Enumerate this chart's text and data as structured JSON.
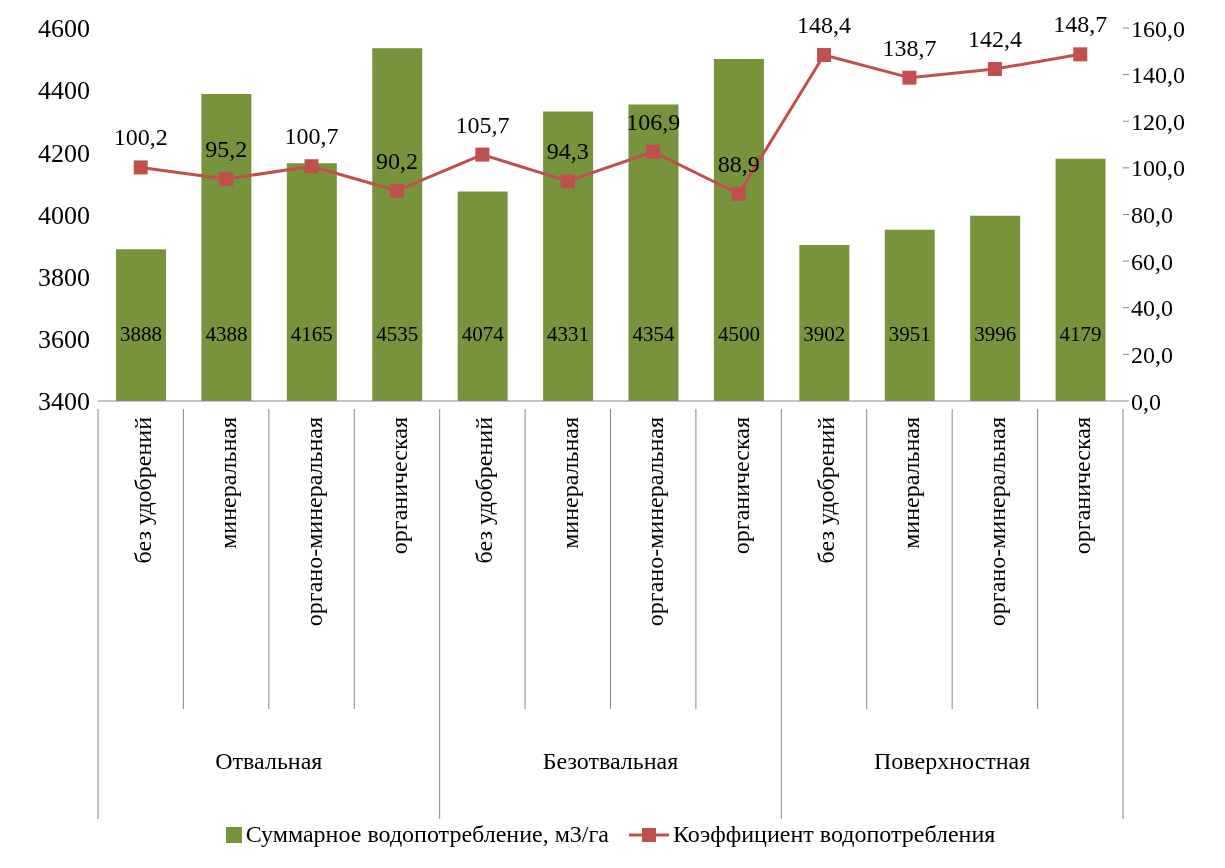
{
  "chart_data": {
    "type": "bar",
    "categories": [
      "без удобрений",
      "минеральная",
      "органо-минеральная",
      "органическая",
      "без удобрений",
      "минеральная",
      "органо-минеральная",
      "органическая",
      "без удобрений",
      "минеральная",
      "органо-минеральная",
      "органическая"
    ],
    "annotations": [
      "Отвальная",
      "Безотвальная",
      "Поверхностная"
    ],
    "series": [
      {
        "name": "Суммарное водопотребление, м3/га",
        "color": "#77933c",
        "values": [
          3888,
          4388,
          4165,
          4535,
          4074,
          4331,
          4354,
          4500,
          3902,
          3951,
          3996,
          4179
        ],
        "value_labels": [
          "3888",
          "4388",
          "4165",
          "4535",
          "4074",
          "4331",
          "4354",
          "4500",
          "3902",
          "3951",
          "3996",
          "4179"
        ]
      },
      {
        "name": "Коэффициент водопотребления",
        "type": "line",
        "axis": "y2",
        "color": "#c0504d",
        "marker": "square",
        "values": [
          100.2,
          95.2,
          100.7,
          90.2,
          105.7,
          94.3,
          106.9,
          88.9,
          148.4,
          138.7,
          142.4,
          148.7
        ],
        "value_labels": [
          "100,2",
          "95,2",
          "100,7",
          "90,2",
          "105,7",
          "94,3",
          "106,9",
          "88,9",
          "148,4",
          "138,7",
          "142,4",
          "148,7"
        ]
      }
    ],
    "ylim": [
      3400,
      4600
    ],
    "yticks": [
      3400,
      3600,
      3800,
      4000,
      4200,
      4400,
      4600
    ],
    "y2lim": [
      0,
      160
    ],
    "y2ticks": [
      {
        "value": 0,
        "label": "0,0"
      },
      {
        "value": 20,
        "label": "20,0"
      },
      {
        "value": 40,
        "label": "40,0"
      },
      {
        "value": 60,
        "label": "60,0"
      },
      {
        "value": 80,
        "label": "80,0"
      },
      {
        "value": 100,
        "label": "100,0"
      },
      {
        "value": 120,
        "label": "120,0"
      },
      {
        "value": 140,
        "label": "140,0"
      },
      {
        "value": 160,
        "label": "160,0"
      }
    ],
    "grid": false,
    "legend": "bottom"
  }
}
